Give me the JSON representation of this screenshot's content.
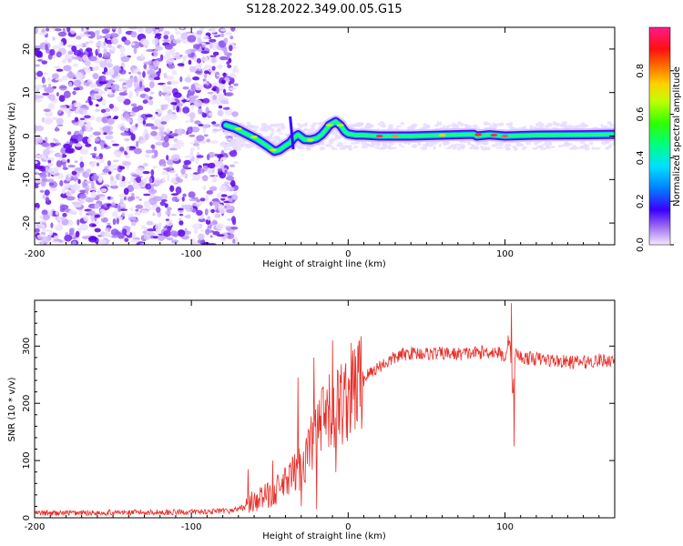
{
  "title": "S128.2022.349.00.05.G15",
  "chart_data": [
    {
      "type": "heatmap",
      "xlabel": "Height of straight line (km)",
      "ylabel": "Frequency (Hz)",
      "xlim": [
        -200,
        170
      ],
      "ylim": [
        -25,
        25
      ],
      "xticks": [
        -200,
        -100,
        0,
        100
      ],
      "yticks": [
        -20,
        -10,
        0,
        10,
        20
      ],
      "noise_region_x": [
        -200,
        -75
      ],
      "ridge": {
        "x": [
          -78,
          -72,
          -65,
          -58,
          -52,
          -47,
          -44,
          -40,
          -37,
          -35,
          -32,
          -28,
          -24,
          -20,
          -17,
          -14,
          -12,
          -8,
          -5,
          -2,
          0,
          5,
          10,
          15,
          20,
          40,
          60,
          80,
          82,
          90,
          100,
          120,
          150,
          170
        ],
        "y": [
          2.5,
          1.8,
          0.5,
          -0.8,
          -2.2,
          -3.5,
          -3.2,
          -2.2,
          -1.5,
          -0.5,
          0.3,
          -0.8,
          -0.9,
          -0.5,
          0.3,
          1.5,
          2.5,
          3.3,
          2.5,
          1.0,
          0.5,
          0.2,
          0.2,
          0.1,
          0.0,
          0.0,
          0.2,
          0.4,
          0.0,
          0.3,
          0.0,
          0.2,
          0.3,
          0.4
        ]
      },
      "colorbar": {
        "label": "Normalized spectral amplitude",
        "ticks": [
          0.0,
          0.2,
          0.4,
          0.6,
          0.8
        ],
        "tick_labels": [
          "0.0",
          "0.2",
          "0.4",
          "0.6",
          "0.8"
        ],
        "range": [
          0,
          1
        ]
      }
    },
    {
      "type": "line",
      "xlabel": "Height of straight line (km)",
      "ylabel": "SNR (10 * v/v)",
      "xlim": [
        -200,
        170
      ],
      "ylim": [
        0,
        380
      ],
      "xticks": [
        -200,
        -100,
        0,
        100
      ],
      "yticks": [
        0,
        100,
        200,
        300
      ],
      "color": "#e8302a",
      "series": [
        {
          "name": "SNR",
          "x": [
            -200,
            -150,
            -100,
            -75,
            -65,
            -60,
            -50,
            -40,
            -30,
            -25,
            -20,
            -15,
            -10,
            -5,
            0,
            5,
            10,
            15,
            20,
            25,
            30,
            35,
            40,
            50,
            60,
            70,
            80,
            90,
            95,
            100,
            103,
            105,
            107,
            110,
            120,
            130,
            140,
            150,
            160,
            170
          ],
          "y": [
            8,
            9,
            10,
            12,
            20,
            30,
            40,
            60,
            90,
            120,
            150,
            170,
            185,
            200,
            215,
            230,
            245,
            255,
            265,
            272,
            280,
            285,
            288,
            287,
            287,
            286,
            288,
            290,
            290,
            280,
            320,
            210,
            290,
            280,
            278,
            275,
            272,
            272,
            275,
            275
          ]
        }
      ],
      "spikes": [
        {
          "x": -64,
          "y": 85
        },
        {
          "x": -48,
          "y": 100
        },
        {
          "x": -32,
          "y": 245
        },
        {
          "x": -30,
          "y": 20
        },
        {
          "x": -22,
          "y": 280
        },
        {
          "x": -20,
          "y": 15
        },
        {
          "x": -10,
          "y": 310
        },
        {
          "x": -8,
          "y": 80
        },
        {
          "x": -2,
          "y": 260
        },
        {
          "x": 104,
          "y": 375
        },
        {
          "x": 106,
          "y": 125
        }
      ]
    }
  ]
}
